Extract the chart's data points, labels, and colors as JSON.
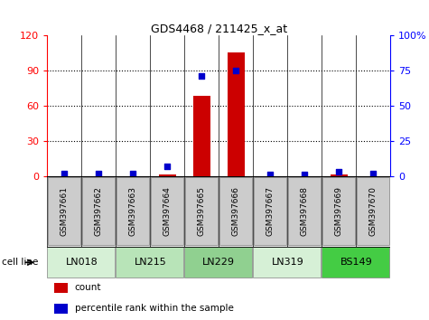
{
  "title": "GDS4468 / 211425_x_at",
  "samples": [
    "GSM397661",
    "GSM397662",
    "GSM397663",
    "GSM397664",
    "GSM397665",
    "GSM397666",
    "GSM397667",
    "GSM397668",
    "GSM397669",
    "GSM397670"
  ],
  "count_values": [
    0,
    0,
    0,
    1,
    68,
    105,
    0,
    0,
    1,
    0
  ],
  "percentile_values": [
    2,
    2,
    2,
    7,
    71,
    75,
    1,
    1,
    3,
    2
  ],
  "cell_lines": [
    {
      "name": "LN018",
      "span": [
        0,
        2
      ],
      "color": "#d6f0d6"
    },
    {
      "name": "LN215",
      "span": [
        2,
        4
      ],
      "color": "#b8e4b8"
    },
    {
      "name": "LN229",
      "span": [
        4,
        6
      ],
      "color": "#90d090"
    },
    {
      "name": "LN319",
      "span": [
        6,
        8
      ],
      "color": "#d6f0d6"
    },
    {
      "name": "BS149",
      "span": [
        8,
        10
      ],
      "color": "#44cc44"
    }
  ],
  "ylim_left": [
    0,
    120
  ],
  "ylim_right": [
    0,
    100
  ],
  "yticks_left": [
    0,
    30,
    60,
    90,
    120
  ],
  "yticks_right": [
    0,
    25,
    50,
    75,
    100
  ],
  "ytick_right_labels": [
    "0",
    "25",
    "50",
    "75",
    "100%"
  ],
  "bar_color": "#cc0000",
  "dot_color": "#0000cc",
  "background_color": "#ffffff",
  "sample_box_color": "#cccccc",
  "sample_box_edge": "#999999",
  "legend_count_label": "count",
  "legend_pct_label": "percentile rank within the sample"
}
